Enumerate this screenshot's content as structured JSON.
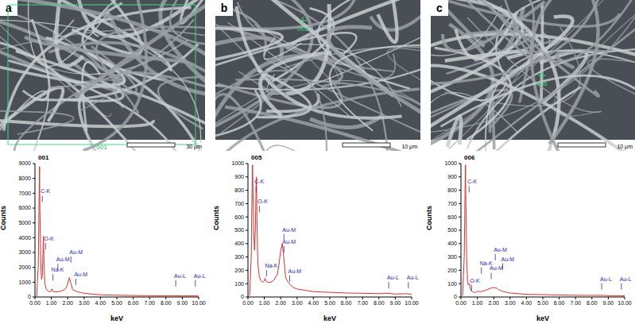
{
  "panels": [
    {
      "label": "a",
      "marker": "001",
      "scale_bar": "30 μm"
    },
    {
      "label": "b",
      "marker": "005",
      "scale_bar": "10 μm"
    },
    {
      "label": "c",
      "marker": "006",
      "scale_bar": "10 μm"
    }
  ],
  "chart_data": [
    {
      "type": "line",
      "title": "001",
      "x_label": "keV",
      "y_label": "Counts",
      "x": [
        0.1,
        0.2,
        0.25,
        0.28,
        0.3,
        0.35,
        0.4,
        0.45,
        0.5,
        0.52,
        0.55,
        0.6,
        0.7,
        0.8,
        0.9,
        1.0,
        1.04,
        1.1,
        1.2,
        1.4,
        1.6,
        1.7,
        1.8,
        1.9,
        2.0,
        2.1,
        2.2,
        2.3,
        2.4,
        2.6,
        2.8,
        3.0,
        3.5,
        4,
        5,
        6,
        7,
        8,
        8.5,
        9,
        9.7,
        10
      ],
      "values": [
        50,
        2000,
        6500,
        8800,
        6000,
        2500,
        1200,
        1500,
        3500,
        4100,
        2500,
        900,
        500,
        400,
        350,
        400,
        550,
        400,
        350,
        350,
        400,
        450,
        500,
        600,
        900,
        1300,
        900,
        500,
        450,
        350,
        300,
        250,
        200,
        150,
        120,
        100,
        90,
        80,
        90,
        70,
        80,
        60
      ],
      "color": "#d9302c",
      "xlim": [
        0,
        10
      ],
      "xticks": [
        {
          "value": 0,
          "label": "0.00"
        },
        {
          "value": 1,
          "label": "1.00"
        },
        {
          "value": 2,
          "label": "2.00"
        },
        {
          "value": 3,
          "label": "3.00"
        },
        {
          "value": 4,
          "label": "4.00"
        },
        {
          "value": 5,
          "label": "5.00"
        },
        {
          "value": 6,
          "label": "6.00"
        },
        {
          "value": 7,
          "label": "7.00"
        },
        {
          "value": 8,
          "label": "8.00"
        },
        {
          "value": 9,
          "label": "9.00"
        },
        {
          "value": 10,
          "label": "10.00"
        }
      ],
      "ylim": [
        0,
        9000
      ],
      "yticks": [
        0,
        1000,
        2000,
        3000,
        4000,
        5000,
        6000,
        7000,
        8000,
        9000
      ],
      "annotations": [
        {
          "text": "C-K",
          "x": 0.35,
          "y": 7000
        },
        {
          "text": "O-K",
          "x": 0.55,
          "y": 3800
        },
        {
          "text": "Na-K",
          "x": 1.0,
          "y": 1700
        },
        {
          "text": "Au-M",
          "x": 1.3,
          "y": 2400
        },
        {
          "text": "Au-M",
          "x": 2.1,
          "y": 2900
        },
        {
          "text": "Au-M",
          "x": 2.4,
          "y": 1400
        },
        {
          "text": "Au-L",
          "x": 8.5,
          "y": 1300
        },
        {
          "text": "Au-L",
          "x": 9.7,
          "y": 1300
        }
      ]
    },
    {
      "type": "line",
      "title": "005",
      "x_label": "keV",
      "y_label": "Counts",
      "x": [
        0.1,
        0.2,
        0.25,
        0.28,
        0.3,
        0.35,
        0.4,
        0.45,
        0.5,
        0.52,
        0.55,
        0.6,
        0.7,
        0.8,
        0.9,
        1.0,
        1.04,
        1.1,
        1.2,
        1.4,
        1.6,
        1.7,
        1.8,
        1.9,
        2.0,
        2.1,
        2.2,
        2.3,
        2.4,
        2.6,
        2.8,
        3.0,
        3.5,
        4,
        5,
        6,
        7,
        8,
        8.5,
        9,
        9.7,
        10
      ],
      "values": [
        10,
        300,
        800,
        990,
        850,
        500,
        350,
        500,
        850,
        900,
        600,
        250,
        150,
        120,
        110,
        120,
        140,
        120,
        110,
        110,
        130,
        150,
        170,
        250,
        350,
        400,
        280,
        150,
        120,
        90,
        70,
        60,
        50,
        40,
        35,
        30,
        28,
        25,
        28,
        22,
        25,
        20
      ],
      "color": "#d9302c",
      "xlim": [
        0,
        10
      ],
      "xticks": [
        {
          "value": 0,
          "label": "0.00"
        },
        {
          "value": 1,
          "label": "1.00"
        },
        {
          "value": 2,
          "label": "2.00"
        },
        {
          "value": 3,
          "label": "3.00"
        },
        {
          "value": 4,
          "label": "4.00"
        },
        {
          "value": 5,
          "label": "5.00"
        },
        {
          "value": 6,
          "label": "6.00"
        },
        {
          "value": 7,
          "label": "7.00"
        },
        {
          "value": 8,
          "label": "8.00"
        },
        {
          "value": 9,
          "label": "9.00"
        },
        {
          "value": 10,
          "label": "10.00"
        }
      ],
      "ylim": [
        0,
        1000
      ],
      "yticks": [
        0,
        100,
        200,
        300,
        400,
        500,
        600,
        700,
        800,
        900,
        1000
      ],
      "annotations": [
        {
          "text": "C-K",
          "x": 0.4,
          "y": 850
        },
        {
          "text": "O-K",
          "x": 0.6,
          "y": 700
        },
        {
          "text": "Na-K",
          "x": 1.04,
          "y": 220
        },
        {
          "text": "Au-M",
          "x": 2.1,
          "y": 490
        },
        {
          "text": "Au-M",
          "x": 2.1,
          "y": 400
        },
        {
          "text": "Au-M",
          "x": 2.45,
          "y": 180
        },
        {
          "text": "Au-L",
          "x": 8.5,
          "y": 130
        },
        {
          "text": "Au-L",
          "x": 9.7,
          "y": 130
        }
      ]
    },
    {
      "type": "line",
      "title": "006",
      "x_label": "keV",
      "y_label": "Counts",
      "x": [
        0.1,
        0.2,
        0.25,
        0.28,
        0.3,
        0.35,
        0.4,
        0.45,
        0.5,
        0.52,
        0.55,
        0.6,
        0.7,
        0.8,
        0.9,
        1.0,
        1.04,
        1.1,
        1.2,
        1.4,
        1.6,
        1.7,
        1.8,
        1.9,
        2.0,
        2.1,
        2.2,
        2.3,
        2.4,
        2.6,
        2.8,
        3.0,
        3.5,
        4,
        5,
        6,
        7,
        8,
        8.5,
        9,
        9.7,
        10
      ],
      "values": [
        10,
        300,
        800,
        990,
        700,
        300,
        120,
        90,
        100,
        100,
        80,
        50,
        40,
        35,
        35,
        40,
        45,
        40,
        40,
        45,
        55,
        60,
        65,
        70,
        70,
        70,
        65,
        55,
        50,
        40,
        35,
        30,
        25,
        20,
        18,
        15,
        13,
        12,
        13,
        10,
        10,
        8
      ],
      "color": "#d9302c",
      "xlim": [
        0,
        10
      ],
      "xticks": [
        {
          "value": 0,
          "label": "0.00"
        },
        {
          "value": 1,
          "label": "1.00"
        },
        {
          "value": 2,
          "label": "2.00"
        },
        {
          "value": 3,
          "label": "3.00"
        },
        {
          "value": 4,
          "label": "4.00"
        },
        {
          "value": 5,
          "label": "5.00"
        },
        {
          "value": 6,
          "label": "6.00"
        },
        {
          "value": 7,
          "label": "7.00"
        },
        {
          "value": 8,
          "label": "8.00"
        },
        {
          "value": 9,
          "label": "9.00"
        },
        {
          "value": 10,
          "label": "10.00"
        }
      ],
      "ylim": [
        0,
        1000
      ],
      "yticks": [
        0,
        100,
        200,
        300,
        400,
        500,
        600,
        700,
        800,
        900,
        1000
      ],
      "annotations": [
        {
          "text": "C-K",
          "x": 0.4,
          "y": 850
        },
        {
          "text": "O-K",
          "x": 0.55,
          "y": 110
        },
        {
          "text": "Na-K",
          "x": 1.15,
          "y": 240
        },
        {
          "text": "Au-M",
          "x": 1.75,
          "y": 200
        },
        {
          "text": "Au-M",
          "x": 2.0,
          "y": 340
        },
        {
          "text": "Au-M",
          "x": 2.45,
          "y": 270
        },
        {
          "text": "Au-L",
          "x": 8.5,
          "y": 120
        },
        {
          "text": "Au-L",
          "x": 9.7,
          "y": 120
        }
      ]
    }
  ]
}
